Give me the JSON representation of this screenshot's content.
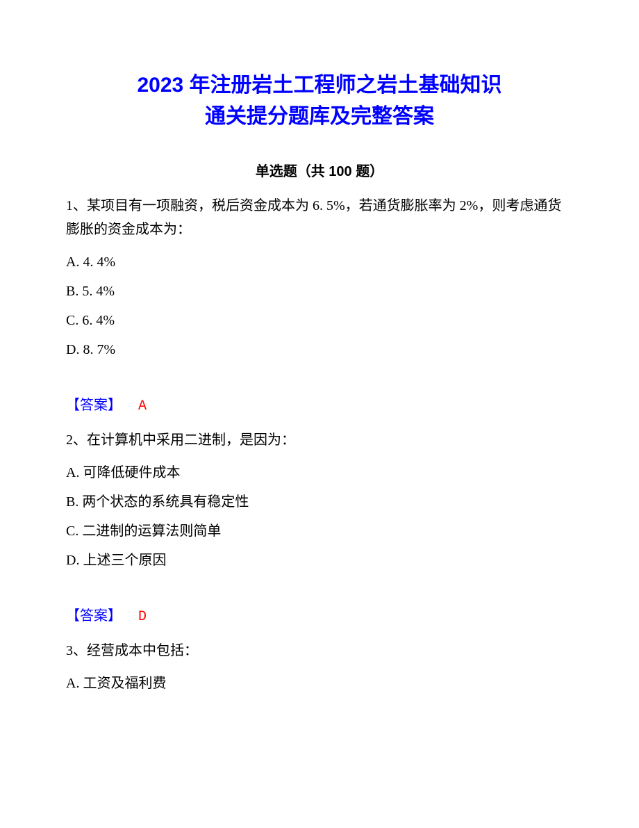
{
  "title_line1": "2023 年注册岩土工程师之岩土基础知识",
  "title_line2": "通关提分题库及完整答案",
  "section_header": "单选题（共 100 题）",
  "questions": [
    {
      "number": "1、",
      "text": "某项目有一项融资，税后资金成本为 6.  5%，若通货膨胀率为 2%，则考虑通货膨胀的资金成本为：",
      "options": [
        "A. 4. 4%",
        "B. 5. 4%",
        "C.  6. 4%",
        "D.  8.  7%"
      ],
      "answer_label": "【答案】",
      "answer_value": "A"
    },
    {
      "number": "2、",
      "text": "在计算机中采用二进制，是因为：",
      "options": [
        "A. 可降低硬件成本",
        "B. 两个状态的系统具有稳定性",
        "C.  二进制的运算法则简单",
        "D. 上述三个原因"
      ],
      "answer_label": "【答案】",
      "answer_value": "D"
    },
    {
      "number": "3、",
      "text": "经营成本中包括：",
      "options": [
        "A. 工资及福利费"
      ],
      "answer_label": "",
      "answer_value": ""
    }
  ],
  "colors": {
    "title": "#0000ff",
    "answer_label": "#0000ff",
    "answer_value": "#ff0000",
    "body_text": "#000000",
    "background": "#ffffff"
  },
  "typography": {
    "title_fontsize": 30,
    "body_fontsize": 20,
    "section_header_fontsize": 20
  }
}
